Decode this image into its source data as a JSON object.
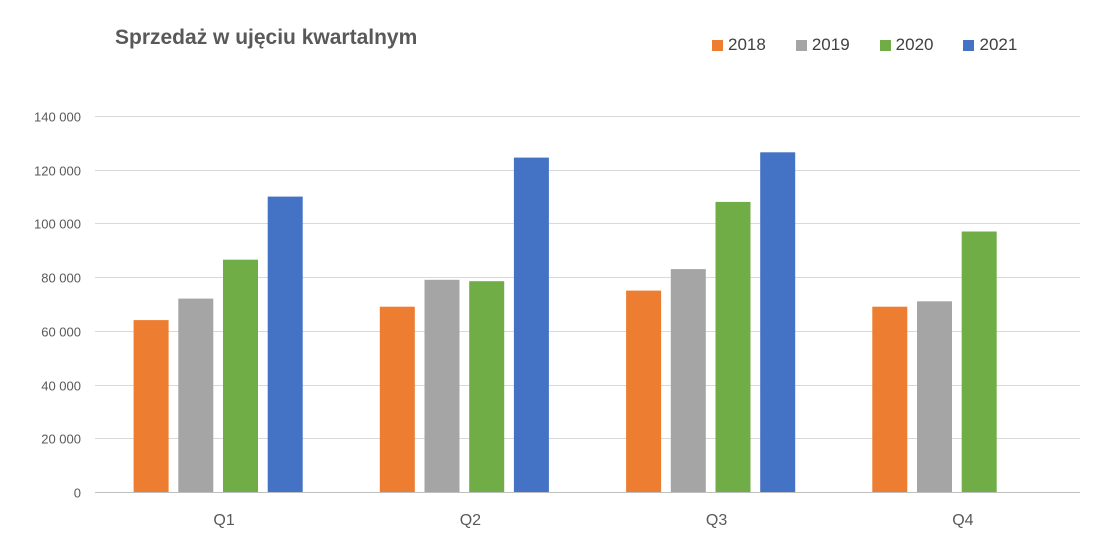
{
  "chart_data": {
    "type": "bar",
    "title": "Sprzedaż w ujęciu kwartalnym",
    "xlabel": "",
    "ylabel": "",
    "categories": [
      "Q1",
      "Q2",
      "Q3",
      "Q4"
    ],
    "series": [
      {
        "name": "2018",
        "color": "#ED7D31",
        "values": [
          64000,
          69000,
          75000,
          69000
        ]
      },
      {
        "name": "2019",
        "color": "#A5A5A5",
        "values": [
          72000,
          79000,
          83000,
          71000
        ]
      },
      {
        "name": "2020",
        "color": "#70AD47",
        "values": [
          86500,
          78500,
          108000,
          97000
        ]
      },
      {
        "name": "2021",
        "color": "#4472C4",
        "values": [
          110000,
          124500,
          126500,
          null
        ]
      }
    ],
    "ylim": [
      0,
      140000
    ],
    "yticks": [
      0,
      20000,
      40000,
      60000,
      80000,
      100000,
      120000,
      140000
    ],
    "ytick_labels": [
      "0",
      "20 000",
      "40 000",
      "60 000",
      "80 000",
      "100 000",
      "120 000",
      "140 000"
    ],
    "grid": true,
    "legend_position": "top-right"
  }
}
